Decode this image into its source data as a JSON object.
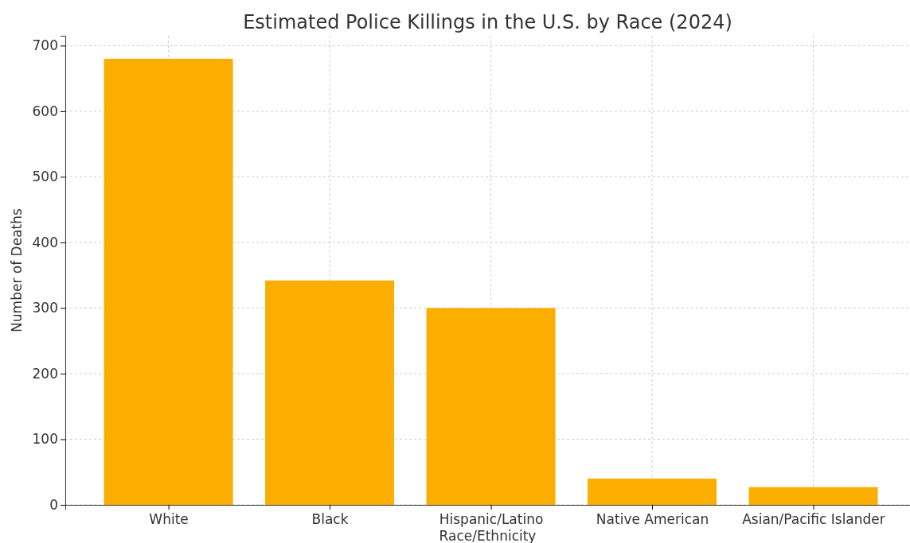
{
  "chart_data": {
    "type": "bar",
    "title": "Estimated Police Killings in the U.S. by Race (2024)",
    "xlabel": "Race/Ethnicity",
    "ylabel": "Number of Deaths",
    "categories": [
      "White",
      "Black",
      "Hispanic/Latino",
      "Native American",
      "Asian/Pacific Islander"
    ],
    "values": [
      680,
      342,
      300,
      40,
      27
    ],
    "color": "#fbae00",
    "ylim": [
      0,
      715
    ],
    "yticks": [
      0,
      100,
      200,
      300,
      400,
      500,
      600,
      700
    ],
    "grid": true
  }
}
